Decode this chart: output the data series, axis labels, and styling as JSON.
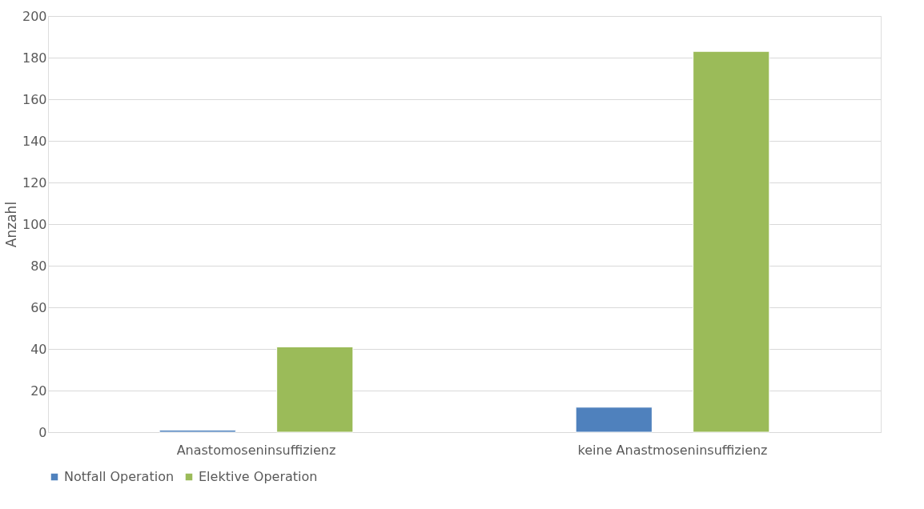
{
  "chart_data": {
    "type": "bar",
    "ylabel": "Anzahl",
    "categories": [
      "Anastomoseninsuffizienz",
      "keine Anastmoseninsuffizienz"
    ],
    "series": [
      {
        "name": "Notfall Operation",
        "color": "#4f81bd",
        "values": [
          1,
          12
        ]
      },
      {
        "name": "Elektive Operation",
        "color": "#9bbb59",
        "values": [
          41,
          183
        ]
      }
    ],
    "ylim": [
      0,
      200
    ],
    "yticks": [
      0,
      20,
      40,
      60,
      80,
      100,
      120,
      140,
      160,
      180,
      200
    ],
    "grid": "y",
    "legend": "bottom"
  }
}
